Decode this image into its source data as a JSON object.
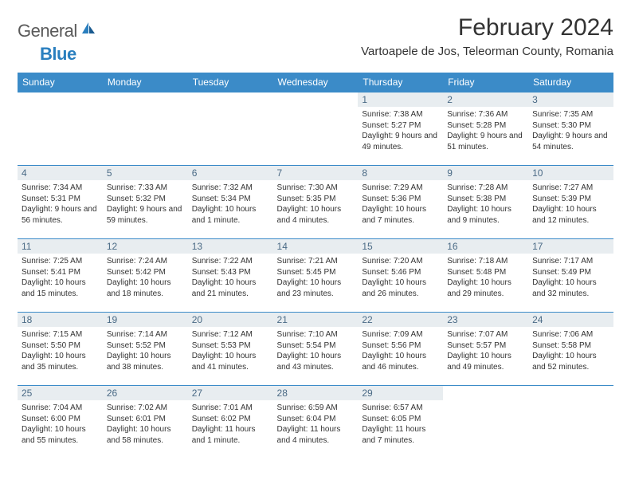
{
  "logo": {
    "word1": "General",
    "word2": "Blue"
  },
  "title": "February 2024",
  "location": "Vartoapele de Jos, Teleorman County, Romania",
  "colors": {
    "header_bg": "#3b8bc8",
    "header_text": "#ffffff",
    "daynum_bg": "#e8edf0",
    "daynum_border": "#3b8bc8",
    "daynum_text": "#4a6a85",
    "body_text": "#333333",
    "logo_gray": "#5a5a5a",
    "logo_blue": "#2a7fbf",
    "page_bg": "#ffffff"
  },
  "typography": {
    "title_fontsize": 30,
    "location_fontsize": 15,
    "dayheader_fontsize": 12,
    "daynum_fontsize": 12,
    "detail_fontsize": 10
  },
  "day_headers": [
    "Sunday",
    "Monday",
    "Tuesday",
    "Wednesday",
    "Thursday",
    "Friday",
    "Saturday"
  ],
  "weeks": [
    [
      null,
      null,
      null,
      null,
      {
        "n": "1",
        "sunrise": "Sunrise: 7:38 AM",
        "sunset": "Sunset: 5:27 PM",
        "daylight": "Daylight: 9 hours and 49 minutes."
      },
      {
        "n": "2",
        "sunrise": "Sunrise: 7:36 AM",
        "sunset": "Sunset: 5:28 PM",
        "daylight": "Daylight: 9 hours and 51 minutes."
      },
      {
        "n": "3",
        "sunrise": "Sunrise: 7:35 AM",
        "sunset": "Sunset: 5:30 PM",
        "daylight": "Daylight: 9 hours and 54 minutes."
      }
    ],
    [
      {
        "n": "4",
        "sunrise": "Sunrise: 7:34 AM",
        "sunset": "Sunset: 5:31 PM",
        "daylight": "Daylight: 9 hours and 56 minutes."
      },
      {
        "n": "5",
        "sunrise": "Sunrise: 7:33 AM",
        "sunset": "Sunset: 5:32 PM",
        "daylight": "Daylight: 9 hours and 59 minutes."
      },
      {
        "n": "6",
        "sunrise": "Sunrise: 7:32 AM",
        "sunset": "Sunset: 5:34 PM",
        "daylight": "Daylight: 10 hours and 1 minute."
      },
      {
        "n": "7",
        "sunrise": "Sunrise: 7:30 AM",
        "sunset": "Sunset: 5:35 PM",
        "daylight": "Daylight: 10 hours and 4 minutes."
      },
      {
        "n": "8",
        "sunrise": "Sunrise: 7:29 AM",
        "sunset": "Sunset: 5:36 PM",
        "daylight": "Daylight: 10 hours and 7 minutes."
      },
      {
        "n": "9",
        "sunrise": "Sunrise: 7:28 AM",
        "sunset": "Sunset: 5:38 PM",
        "daylight": "Daylight: 10 hours and 9 minutes."
      },
      {
        "n": "10",
        "sunrise": "Sunrise: 7:27 AM",
        "sunset": "Sunset: 5:39 PM",
        "daylight": "Daylight: 10 hours and 12 minutes."
      }
    ],
    [
      {
        "n": "11",
        "sunrise": "Sunrise: 7:25 AM",
        "sunset": "Sunset: 5:41 PM",
        "daylight": "Daylight: 10 hours and 15 minutes."
      },
      {
        "n": "12",
        "sunrise": "Sunrise: 7:24 AM",
        "sunset": "Sunset: 5:42 PM",
        "daylight": "Daylight: 10 hours and 18 minutes."
      },
      {
        "n": "13",
        "sunrise": "Sunrise: 7:22 AM",
        "sunset": "Sunset: 5:43 PM",
        "daylight": "Daylight: 10 hours and 21 minutes."
      },
      {
        "n": "14",
        "sunrise": "Sunrise: 7:21 AM",
        "sunset": "Sunset: 5:45 PM",
        "daylight": "Daylight: 10 hours and 23 minutes."
      },
      {
        "n": "15",
        "sunrise": "Sunrise: 7:20 AM",
        "sunset": "Sunset: 5:46 PM",
        "daylight": "Daylight: 10 hours and 26 minutes."
      },
      {
        "n": "16",
        "sunrise": "Sunrise: 7:18 AM",
        "sunset": "Sunset: 5:48 PM",
        "daylight": "Daylight: 10 hours and 29 minutes."
      },
      {
        "n": "17",
        "sunrise": "Sunrise: 7:17 AM",
        "sunset": "Sunset: 5:49 PM",
        "daylight": "Daylight: 10 hours and 32 minutes."
      }
    ],
    [
      {
        "n": "18",
        "sunrise": "Sunrise: 7:15 AM",
        "sunset": "Sunset: 5:50 PM",
        "daylight": "Daylight: 10 hours and 35 minutes."
      },
      {
        "n": "19",
        "sunrise": "Sunrise: 7:14 AM",
        "sunset": "Sunset: 5:52 PM",
        "daylight": "Daylight: 10 hours and 38 minutes."
      },
      {
        "n": "20",
        "sunrise": "Sunrise: 7:12 AM",
        "sunset": "Sunset: 5:53 PM",
        "daylight": "Daylight: 10 hours and 41 minutes."
      },
      {
        "n": "21",
        "sunrise": "Sunrise: 7:10 AM",
        "sunset": "Sunset: 5:54 PM",
        "daylight": "Daylight: 10 hours and 43 minutes."
      },
      {
        "n": "22",
        "sunrise": "Sunrise: 7:09 AM",
        "sunset": "Sunset: 5:56 PM",
        "daylight": "Daylight: 10 hours and 46 minutes."
      },
      {
        "n": "23",
        "sunrise": "Sunrise: 7:07 AM",
        "sunset": "Sunset: 5:57 PM",
        "daylight": "Daylight: 10 hours and 49 minutes."
      },
      {
        "n": "24",
        "sunrise": "Sunrise: 7:06 AM",
        "sunset": "Sunset: 5:58 PM",
        "daylight": "Daylight: 10 hours and 52 minutes."
      }
    ],
    [
      {
        "n": "25",
        "sunrise": "Sunrise: 7:04 AM",
        "sunset": "Sunset: 6:00 PM",
        "daylight": "Daylight: 10 hours and 55 minutes."
      },
      {
        "n": "26",
        "sunrise": "Sunrise: 7:02 AM",
        "sunset": "Sunset: 6:01 PM",
        "daylight": "Daylight: 10 hours and 58 minutes."
      },
      {
        "n": "27",
        "sunrise": "Sunrise: 7:01 AM",
        "sunset": "Sunset: 6:02 PM",
        "daylight": "Daylight: 11 hours and 1 minute."
      },
      {
        "n": "28",
        "sunrise": "Sunrise: 6:59 AM",
        "sunset": "Sunset: 6:04 PM",
        "daylight": "Daylight: 11 hours and 4 minutes."
      },
      {
        "n": "29",
        "sunrise": "Sunrise: 6:57 AM",
        "sunset": "Sunset: 6:05 PM",
        "daylight": "Daylight: 11 hours and 7 minutes."
      },
      null,
      null
    ]
  ]
}
